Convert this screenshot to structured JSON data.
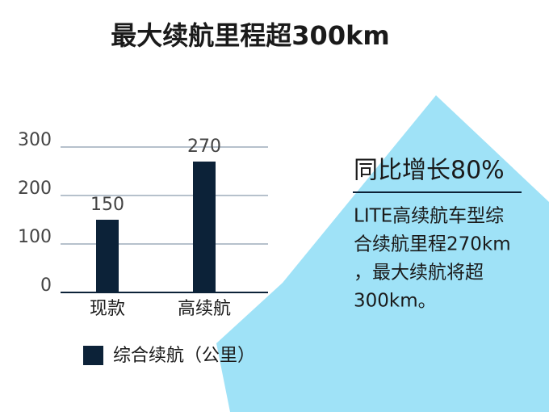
{
  "chart_data": {
    "type": "bar",
    "title": "最大续航里程超300km",
    "categories": [
      "现款",
      "高续航"
    ],
    "series": [
      {
        "name": "综合续航（公里）",
        "color": "#0c2238",
        "values": [
          150,
          270
        ]
      }
    ],
    "ylim": [
      0,
      300
    ],
    "yticks": [
      0,
      100,
      200,
      300
    ],
    "grid": true,
    "annotation": {
      "heading": "同比增长80%",
      "lines": [
        "LITE高续航车型综",
        "合续航里程270km",
        "，最大续航将超",
        "300km。"
      ]
    }
  }
}
